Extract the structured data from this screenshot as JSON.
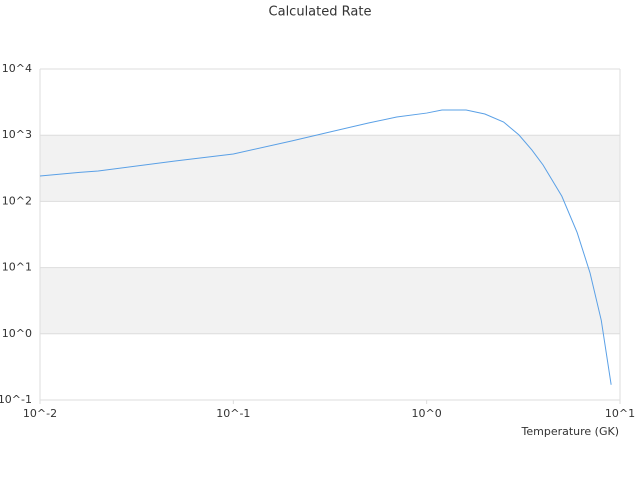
{
  "chart_data": {
    "type": "line",
    "title": "Calculated Rate",
    "x_label": "Temperature (GK)",
    "xscale": "log",
    "yscale": "log",
    "grid": true,
    "xlim": [
      0.01,
      10
    ],
    "ylim": [
      0.1,
      10000
    ],
    "xticks": [
      {
        "value": 0.01,
        "label": "10^-2"
      },
      {
        "value": 0.1,
        "label": "10^-1"
      },
      {
        "value": 1,
        "label": "10^0"
      },
      {
        "value": 10,
        "label": "10^1"
      }
    ],
    "yticks": [
      {
        "value": 0.1,
        "label": "10^-1"
      },
      {
        "value": 1,
        "label": "10^0"
      },
      {
        "value": 10,
        "label": "10^1"
      },
      {
        "value": 100,
        "label": "10^2"
      },
      {
        "value": 1000,
        "label": "10^3"
      },
      {
        "value": 10000,
        "label": "10^4"
      }
    ],
    "x": [
      0.01,
      0.016,
      0.02,
      0.05,
      0.1,
      0.2,
      0.3,
      0.5,
      0.7,
      1,
      1.2,
      1.6,
      2,
      2.5,
      3,
      3.5,
      4,
      5,
      6,
      7,
      8,
      9
    ],
    "series": [
      {
        "color": "#5aa0e6",
        "values": [
          242,
          275,
          288,
          407,
          520,
          817,
          1080,
          1530,
          1880,
          2160,
          2400,
          2400,
          2090,
          1580,
          1010,
          600,
          355,
          120,
          34,
          8.3,
          1.6,
          0.17
        ]
      }
    ]
  }
}
